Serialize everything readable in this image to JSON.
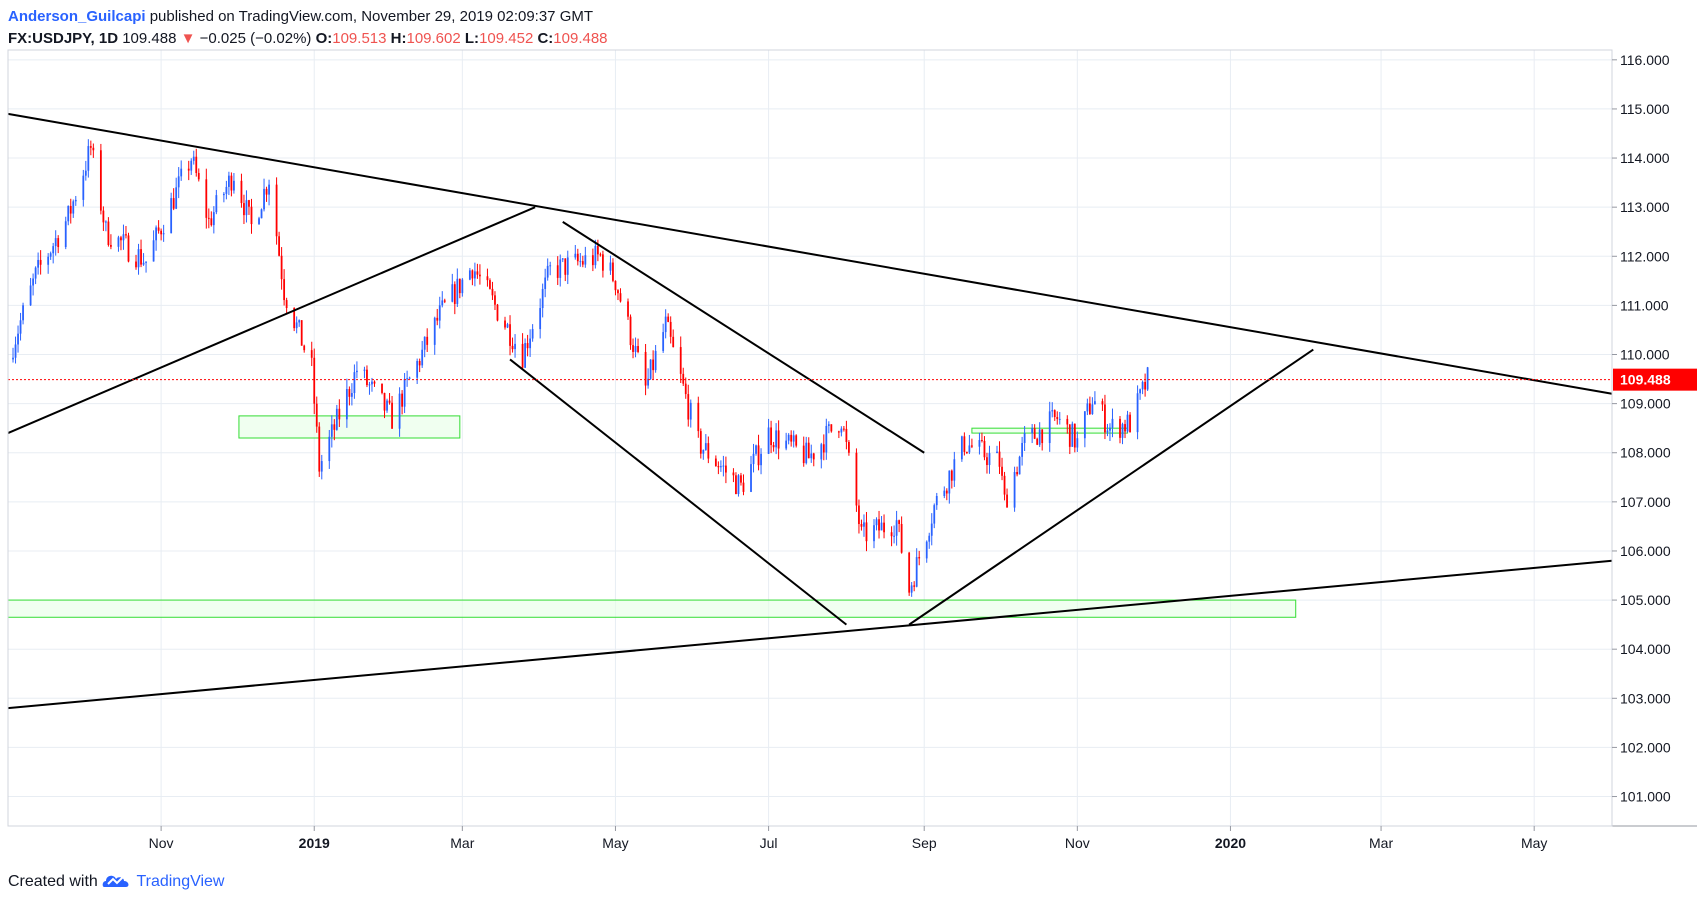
{
  "header": {
    "author": "Anderson_Guilcapi",
    "published_text": " published on TradingView.com, November 29, 2019 02:09:37 GMT",
    "symbol": "FX:USDJPY, 1D",
    "last": "109.488",
    "arrow": "▼",
    "change": "−0.025 (−0.02%)",
    "o_label": "O:",
    "o_value": "109.513",
    "h_label": "H:",
    "h_value": "109.602",
    "l_label": "L:",
    "l_value": "109.452",
    "c_label": "C:",
    "c_value": "109.488"
  },
  "footer": {
    "created_with": "Created with",
    "brand": "TradingView"
  },
  "colors": {
    "up": "#2962ff",
    "down": "#ff0000",
    "trendline": "#000000",
    "zone_border": "#33dd33",
    "zone_fill": "#e6ffe6",
    "price_line": "#ff0000",
    "price_label_bg": "#ff0000",
    "grid": "#e8edf3"
  },
  "chart_data": {
    "type": "candlestick",
    "symbol": "FX:USDJPY",
    "timeframe": "1D",
    "ylim": [
      100.4,
      116.2
    ],
    "xlim": [
      "2018-09-01",
      "2020-06-01"
    ],
    "y_ticks": [
      "116.000",
      "115.000",
      "114.000",
      "113.000",
      "112.000",
      "111.000",
      "110.000",
      "109.000",
      "108.000",
      "107.000",
      "106.000",
      "105.000",
      "104.000",
      "103.000",
      "102.000",
      "101.000"
    ],
    "x_ticks": [
      {
        "label": "Nov",
        "date": "2018-11-01",
        "bold": false
      },
      {
        "label": "2019",
        "date": "2019-01-01",
        "bold": true
      },
      {
        "label": "Mar",
        "date": "2019-03-01",
        "bold": false
      },
      {
        "label": "May",
        "date": "2019-05-01",
        "bold": false
      },
      {
        "label": "Jul",
        "date": "2019-07-01",
        "bold": false
      },
      {
        "label": "Sep",
        "date": "2019-09-01",
        "bold": false
      },
      {
        "label": "Nov",
        "date": "2019-11-01",
        "bold": false
      },
      {
        "label": "2020",
        "date": "2020-01-01",
        "bold": true
      },
      {
        "label": "Mar",
        "date": "2020-03-01",
        "bold": false
      },
      {
        "label": "May",
        "date": "2020-05-01",
        "bold": false
      }
    ],
    "last_price": 109.488,
    "last_price_label": "109.488",
    "close_path": [
      [
        "2018-09-01",
        109.9
      ],
      [
        "2018-09-12",
        111.6
      ],
      [
        "2018-09-25",
        112.8
      ],
      [
        "2018-10-04",
        114.2
      ],
      [
        "2018-10-10",
        112.5
      ],
      [
        "2018-10-26",
        111.9
      ],
      [
        "2018-11-13",
        114.0
      ],
      [
        "2018-11-20",
        112.7
      ],
      [
        "2018-11-30",
        113.7
      ],
      [
        "2018-12-07",
        112.6
      ],
      [
        "2018-12-14",
        113.6
      ],
      [
        "2018-12-20",
        111.3
      ],
      [
        "2018-12-31",
        109.7
      ],
      [
        "2019-01-03",
        107.7
      ],
      [
        "2019-01-18",
        109.7
      ],
      [
        "2019-02-01",
        108.7
      ],
      [
        "2019-02-20",
        110.8
      ],
      [
        "2019-03-05",
        111.8
      ],
      [
        "2019-03-25",
        110.0
      ],
      [
        "2019-04-05",
        111.7
      ],
      [
        "2019-04-25",
        112.0
      ],
      [
        "2019-05-01",
        111.5
      ],
      [
        "2019-05-13",
        109.3
      ],
      [
        "2019-05-21",
        110.6
      ],
      [
        "2019-06-03",
        108.2
      ],
      [
        "2019-06-20",
        107.3
      ],
      [
        "2019-07-01",
        108.4
      ],
      [
        "2019-07-17",
        107.9
      ],
      [
        "2019-07-30",
        108.7
      ],
      [
        "2019-08-07",
        106.3
      ],
      [
        "2019-08-21",
        106.6
      ],
      [
        "2019-08-26",
        105.2
      ],
      [
        "2019-09-05",
        106.9
      ],
      [
        "2019-09-17",
        108.2
      ],
      [
        "2019-10-01",
        107.8
      ],
      [
        "2019-10-03",
        107.0
      ],
      [
        "2019-10-11",
        108.2
      ],
      [
        "2019-10-24",
        108.7
      ],
      [
        "2019-11-01",
        108.2
      ],
      [
        "2019-11-07",
        109.1
      ],
      [
        "2019-11-14",
        108.5
      ],
      [
        "2019-11-22",
        108.6
      ],
      [
        "2019-11-29",
        109.49
      ]
    ],
    "annotations": {
      "trendlines": [
        {
          "points": [
            [
              "2018-09-01",
              114.9
            ],
            [
              "2020-06-01",
              109.2
            ]
          ]
        },
        {
          "points": [
            [
              "2018-09-01",
              108.4
            ],
            [
              "2019-03-30",
              113.0
            ]
          ]
        },
        {
          "points": [
            [
              "2019-04-10",
              112.7
            ],
            [
              "2019-09-01",
              108.0
            ]
          ]
        },
        {
          "points": [
            [
              "2019-03-20",
              109.9
            ],
            [
              "2019-08-01",
              104.5
            ]
          ]
        },
        {
          "points": [
            [
              "2019-08-26",
              104.5
            ],
            [
              "2020-02-03",
              110.1
            ]
          ]
        },
        {
          "points": [
            [
              "2018-09-01",
              102.8
            ],
            [
              "2020-06-01",
              105.8
            ]
          ]
        }
      ],
      "zones": [
        {
          "from": "2018-12-02",
          "to": "2019-02-28",
          "low": 108.3,
          "high": 108.75
        },
        {
          "from": "2018-09-01",
          "to": "2020-01-27",
          "low": 104.65,
          "high": 105.0
        },
        {
          "from": "2019-09-20",
          "to": "2019-11-21",
          "low": 108.4,
          "high": 108.5
        }
      ]
    }
  }
}
